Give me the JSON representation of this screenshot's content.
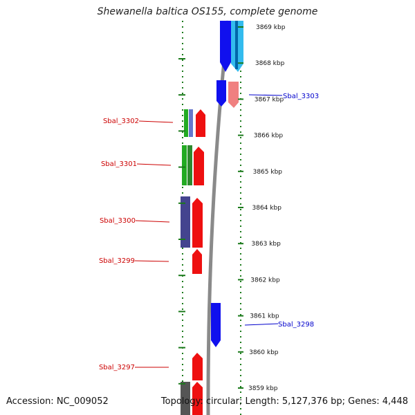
{
  "title": "Shewanella baltica OS155, complete genome",
  "footer": {
    "accession": "Accession: NC_009052",
    "summary": "Topology: circular; Length: 5,127,376 bp; Genes: 4,448"
  },
  "scale": {
    "unit": "kbp",
    "ticks": [
      "3869 kbp",
      "3868 kbp",
      "3867 kbp",
      "3866 kbp",
      "3865 kbp",
      "3864 kbp",
      "3863 kbp",
      "3862 kbp",
      "3861 kbp",
      "3860 kbp",
      "3859 kbp"
    ]
  },
  "gene_labels": {
    "forward": [
      "Sbal_3303",
      "Sbal_3298"
    ],
    "reverse": [
      "Sbal_3302",
      "Sbal_3301",
      "Sbal_3300",
      "Sbal_3299",
      "Sbal_3297"
    ]
  },
  "colors": {
    "forward_label": "#0000cc",
    "reverse_label": "#cc0000",
    "backbone": "#8a8a8a",
    "tick_dots": "#1a7a1a",
    "gene_blue": "#1010ee",
    "gene_red": "#ee1010",
    "gene_cyan": "#33bbee",
    "gene_green": "#22aa22",
    "gene_navy": "#44448f",
    "gene_pink": "#f08080",
    "gene_gray": "#555555"
  }
}
